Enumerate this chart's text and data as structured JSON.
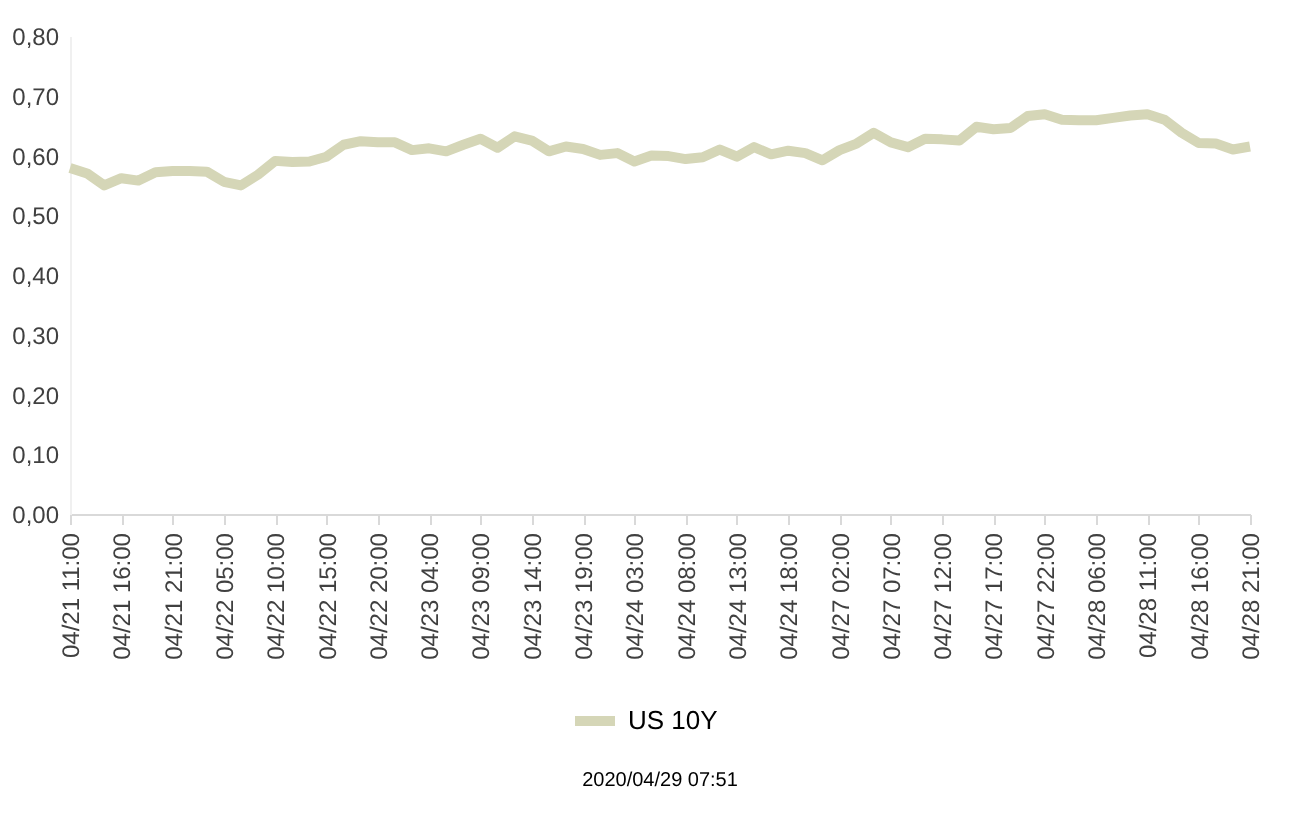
{
  "chart_data": {
    "type": "line",
    "categories": [
      "04/21 11:00",
      null,
      null,
      "04/21 16:00",
      null,
      null,
      "04/21 21:00",
      null,
      null,
      "04/22 05:00",
      null,
      null,
      "04/22 10:00",
      null,
      null,
      "04/22 15:00",
      null,
      null,
      "04/22 20:00",
      null,
      null,
      "04/23 04:00",
      null,
      null,
      "04/23 09:00",
      null,
      null,
      "04/23 14:00",
      null,
      null,
      "04/23 19:00",
      null,
      null,
      "04/24 03:00",
      null,
      null,
      "04/24 08:00",
      null,
      null,
      "04/24 13:00",
      null,
      null,
      "04/24 18:00",
      null,
      null,
      "04/27 02:00",
      null,
      null,
      "04/27 07:00",
      null,
      null,
      "04/27 12:00",
      null,
      null,
      "04/27 17:00",
      null,
      null,
      "04/27 22:00",
      null,
      null,
      "04/28 06:00",
      null,
      null,
      "04/28 11:00",
      null,
      null,
      "04/28 16:00",
      null,
      null,
      "04/28 21:00"
    ],
    "series": [
      {
        "name": "US 10Y",
        "color": "#d5d6b7",
        "values": [
          0.579,
          0.57,
          0.55,
          0.562,
          0.558,
          0.572,
          0.574,
          0.574,
          0.573,
          0.556,
          0.55,
          0.568,
          0.591,
          0.589,
          0.59,
          0.598,
          0.618,
          0.624,
          0.622,
          0.622,
          0.609,
          0.612,
          0.607,
          0.618,
          0.628,
          0.613,
          0.632,
          0.625,
          0.607,
          0.615,
          0.611,
          0.601,
          0.604,
          0.59,
          0.6,
          0.599,
          0.594,
          0.597,
          0.61,
          0.598,
          0.614,
          0.602,
          0.608,
          0.604,
          0.592,
          0.609,
          0.62,
          0.638,
          0.622,
          0.614,
          0.628,
          0.627,
          0.625,
          0.648,
          0.644,
          0.646,
          0.666,
          0.669,
          0.66,
          0.659,
          0.659,
          0.663,
          0.667,
          0.669,
          0.66,
          0.638,
          0.621,
          0.62,
          0.61,
          0.615
        ]
      }
    ],
    "ylim": [
      0,
      0.8
    ],
    "yticks": [
      {
        "value": 0,
        "label": "0,00"
      },
      {
        "value": 0.1,
        "label": "0,10"
      },
      {
        "value": 0.2,
        "label": "0,20"
      },
      {
        "value": 0.3,
        "label": "0,30"
      },
      {
        "value": 0.4,
        "label": "0,40"
      },
      {
        "value": 0.5,
        "label": "0,50"
      },
      {
        "value": 0.6,
        "label": "0,60"
      },
      {
        "value": 0.7,
        "label": "0,70"
      },
      {
        "value": 0.8,
        "label": "0,80"
      }
    ],
    "grid": false,
    "legend": "bottom",
    "marker": "none",
    "line_style": "solid",
    "annotations": [
      "2020/04/29 07:51"
    ]
  }
}
